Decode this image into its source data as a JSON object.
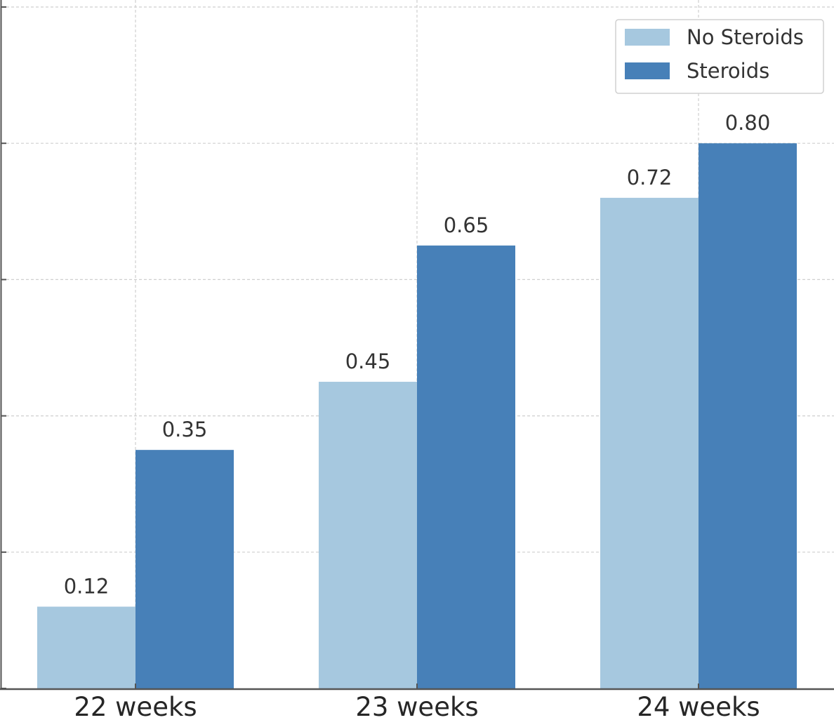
{
  "chart_data": {
    "type": "bar",
    "title": "",
    "xlabel": "",
    "ylabel": "",
    "categories": [
      "22 weeks",
      "23 weeks",
      "24 weeks"
    ],
    "series": [
      {
        "name": "No Steroids",
        "values": [
          0.12,
          0.45,
          0.72
        ],
        "color": "#a6c8df"
      },
      {
        "name": "Steroids",
        "values": [
          0.35,
          0.65,
          0.8
        ],
        "color": "#4780b8"
      }
    ],
    "value_labels": {
      "No Steroids": [
        "0.12",
        "0.45",
        "0.72"
      ],
      "Steroids": [
        "0.35",
        "0.65",
        "0.80"
      ]
    },
    "ylim": [
      0,
      1.0
    ],
    "y_gridlines": [
      0.2,
      0.4,
      0.6,
      0.8,
      1.0
    ],
    "y_tick_labels_visible": false,
    "grid": true,
    "legend": {
      "position": "top-right",
      "entries": [
        "No Steroids",
        "Steroids"
      ]
    }
  }
}
